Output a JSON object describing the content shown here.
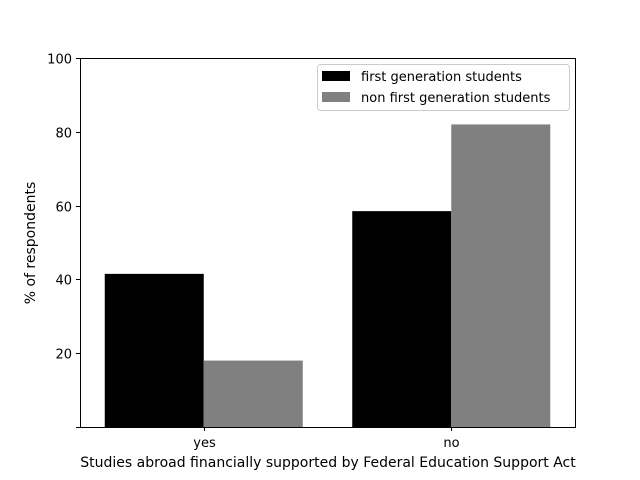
{
  "chart_data": {
    "type": "bar",
    "categories": [
      "yes",
      "no"
    ],
    "series": [
      {
        "name": "first generation students",
        "values": [
          41.5,
          58.5
        ],
        "color": "#000000"
      },
      {
        "name": "non first generation students",
        "values": [
          18,
          82
        ],
        "color": "#808080"
      }
    ],
    "xlabel": "Studies abroad financially supported by Federal Education Support Act",
    "ylabel": "% of respondents",
    "ylim": [
      0,
      100
    ],
    "yticks": [
      20,
      40,
      60,
      80,
      100
    ],
    "grid": false,
    "legend_position": "top-right"
  }
}
